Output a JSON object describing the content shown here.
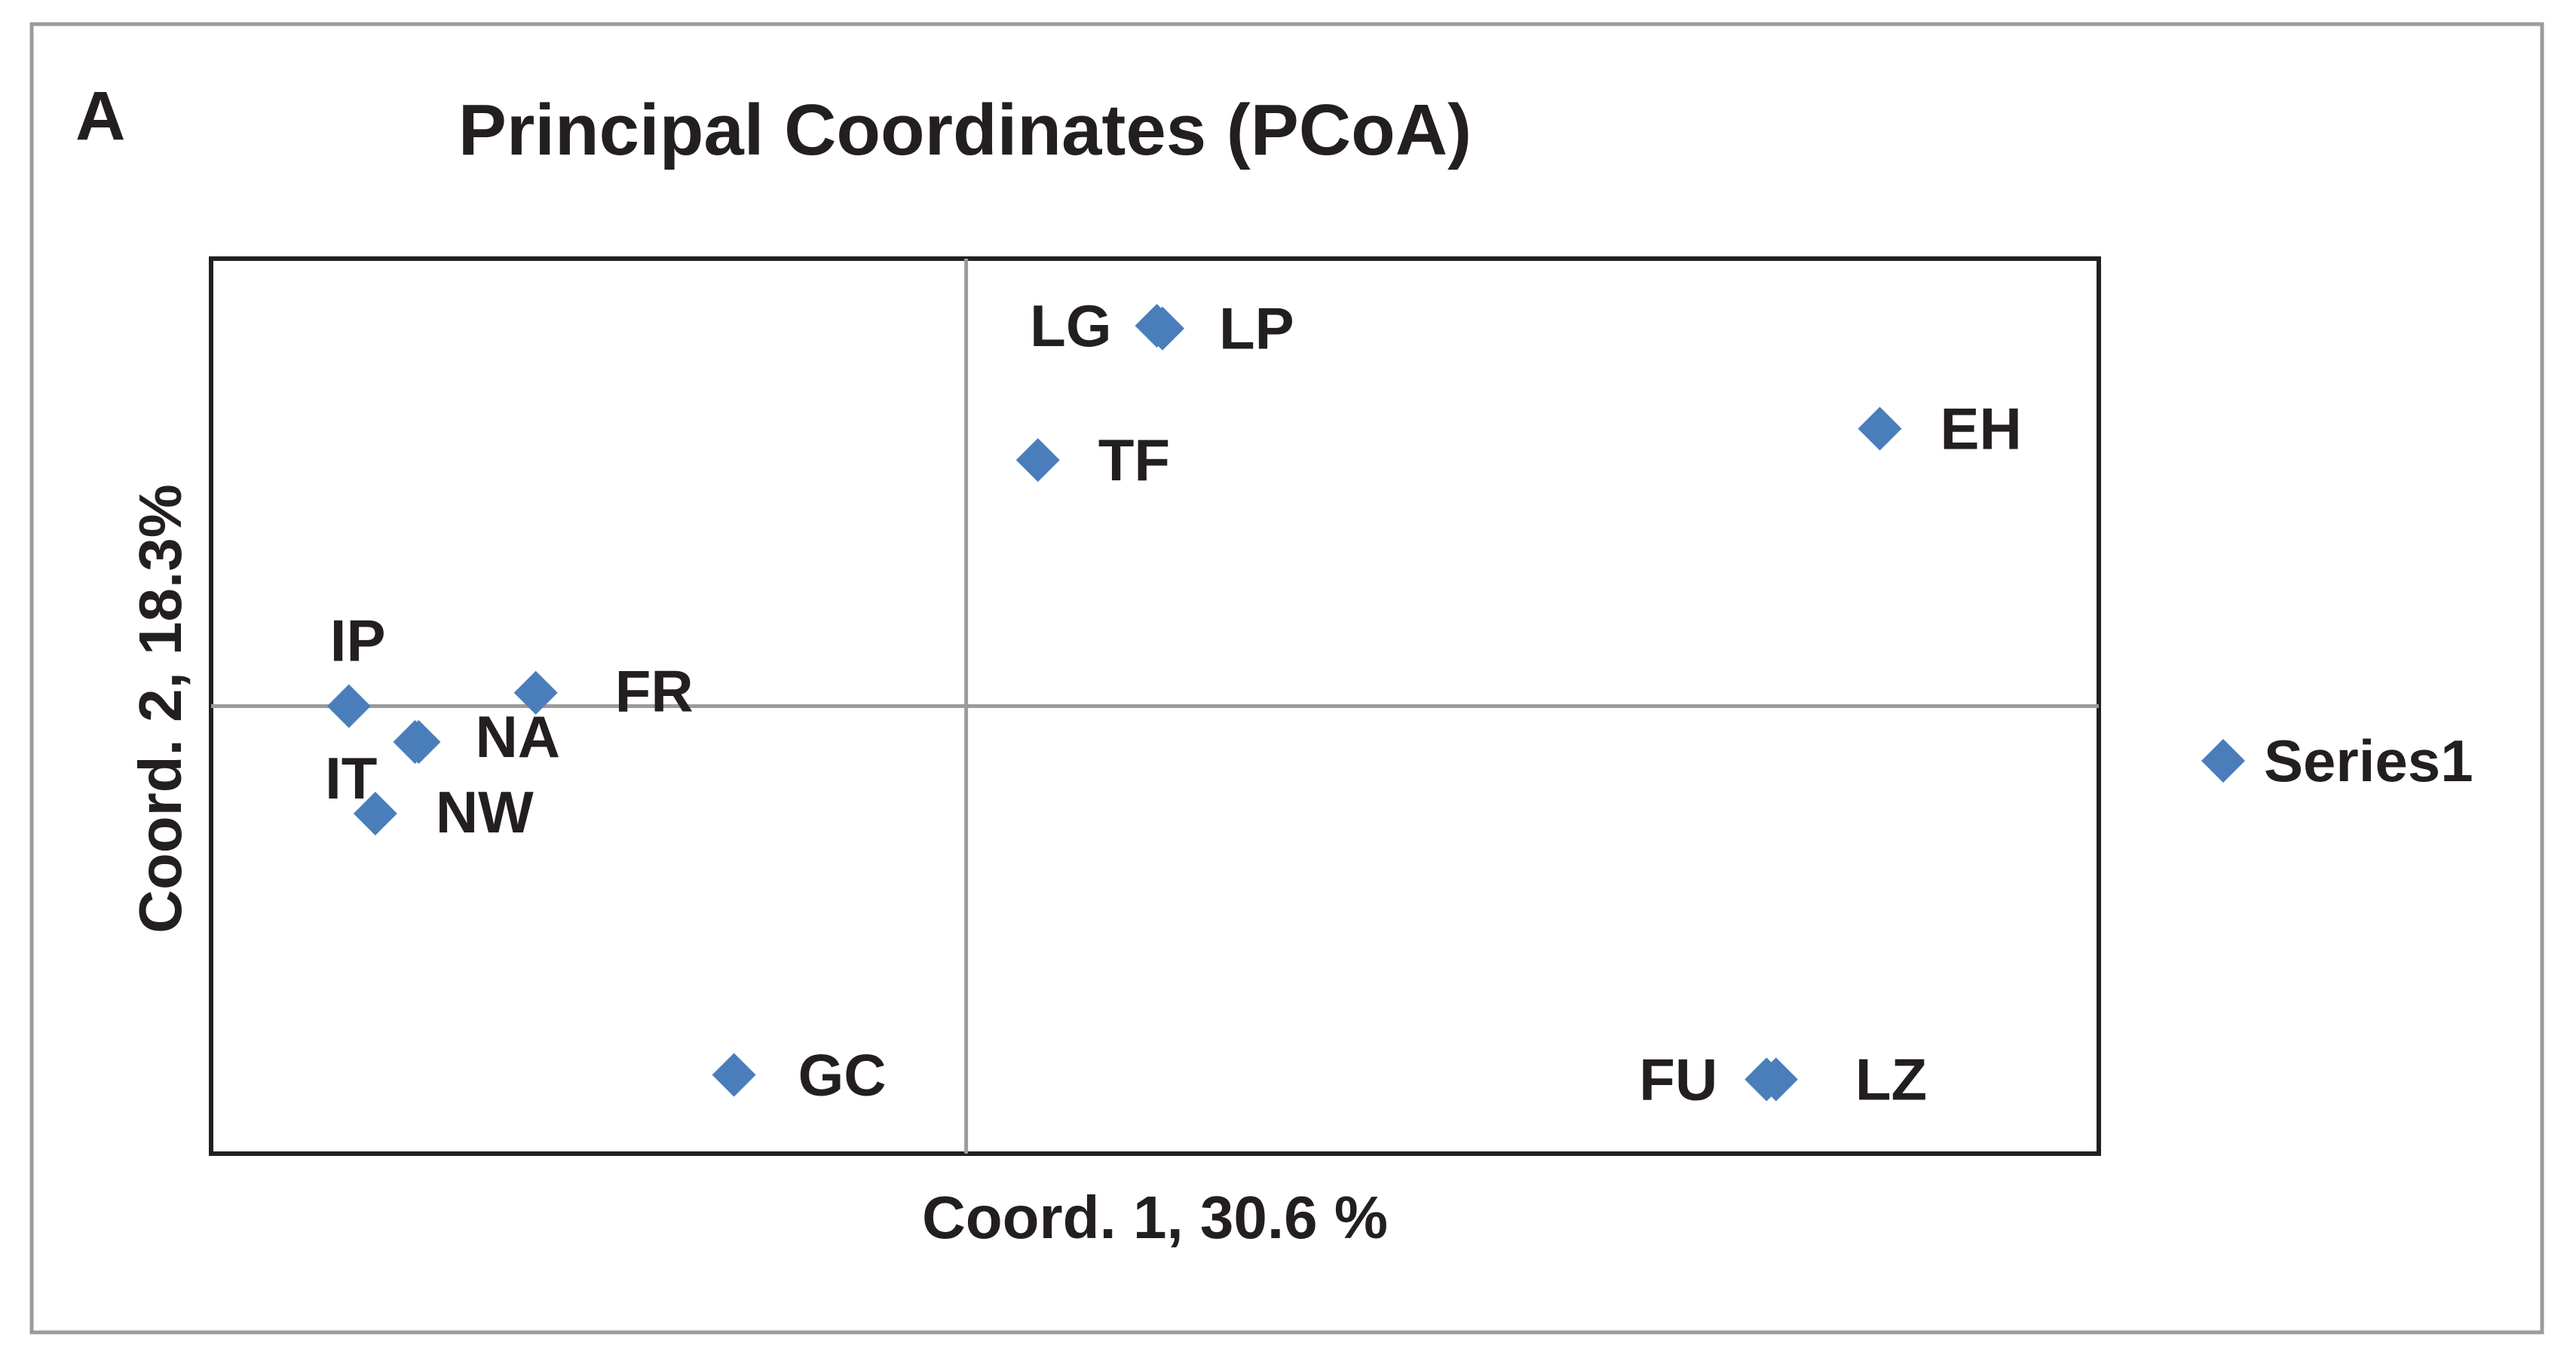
{
  "figure": {
    "panel_letter": "A"
  },
  "chart_data": {
    "type": "scatter",
    "title": "Principal Coordinates (PCoA)",
    "xlabel": "Coord. 1, 30.6 %",
    "ylabel": "Coord. 2, 18.3%",
    "xlim": [
      -0.4,
      0.6
    ],
    "ylim": [
      -0.5,
      0.5
    ],
    "grid": false,
    "axes_cross_at_origin": true,
    "legend_position": "right",
    "marker": "diamond",
    "color": "#4a7ebb",
    "series": [
      {
        "name": "Series1",
        "points": [
          {
            "label": "IP",
            "x": -0.327,
            "y": 0.0
          },
          {
            "label": "IT",
            "x": -0.292,
            "y": -0.04
          },
          {
            "label": "NA",
            "x": -0.29,
            "y": -0.04
          },
          {
            "label": "FR",
            "x": -0.228,
            "y": 0.015
          },
          {
            "label": "NW",
            "x": -0.313,
            "y": -0.12
          },
          {
            "label": "GC",
            "x": -0.123,
            "y": -0.412
          },
          {
            "label": "LG",
            "x": 0.101,
            "y": 0.425
          },
          {
            "label": "LP",
            "x": 0.104,
            "y": 0.422
          },
          {
            "label": "TF",
            "x": 0.038,
            "y": 0.275
          },
          {
            "label": "EH",
            "x": 0.484,
            "y": 0.31
          },
          {
            "label": "FU",
            "x": 0.424,
            "y": -0.417
          },
          {
            "label": "LZ",
            "x": 0.429,
            "y": -0.417
          }
        ]
      }
    ]
  }
}
